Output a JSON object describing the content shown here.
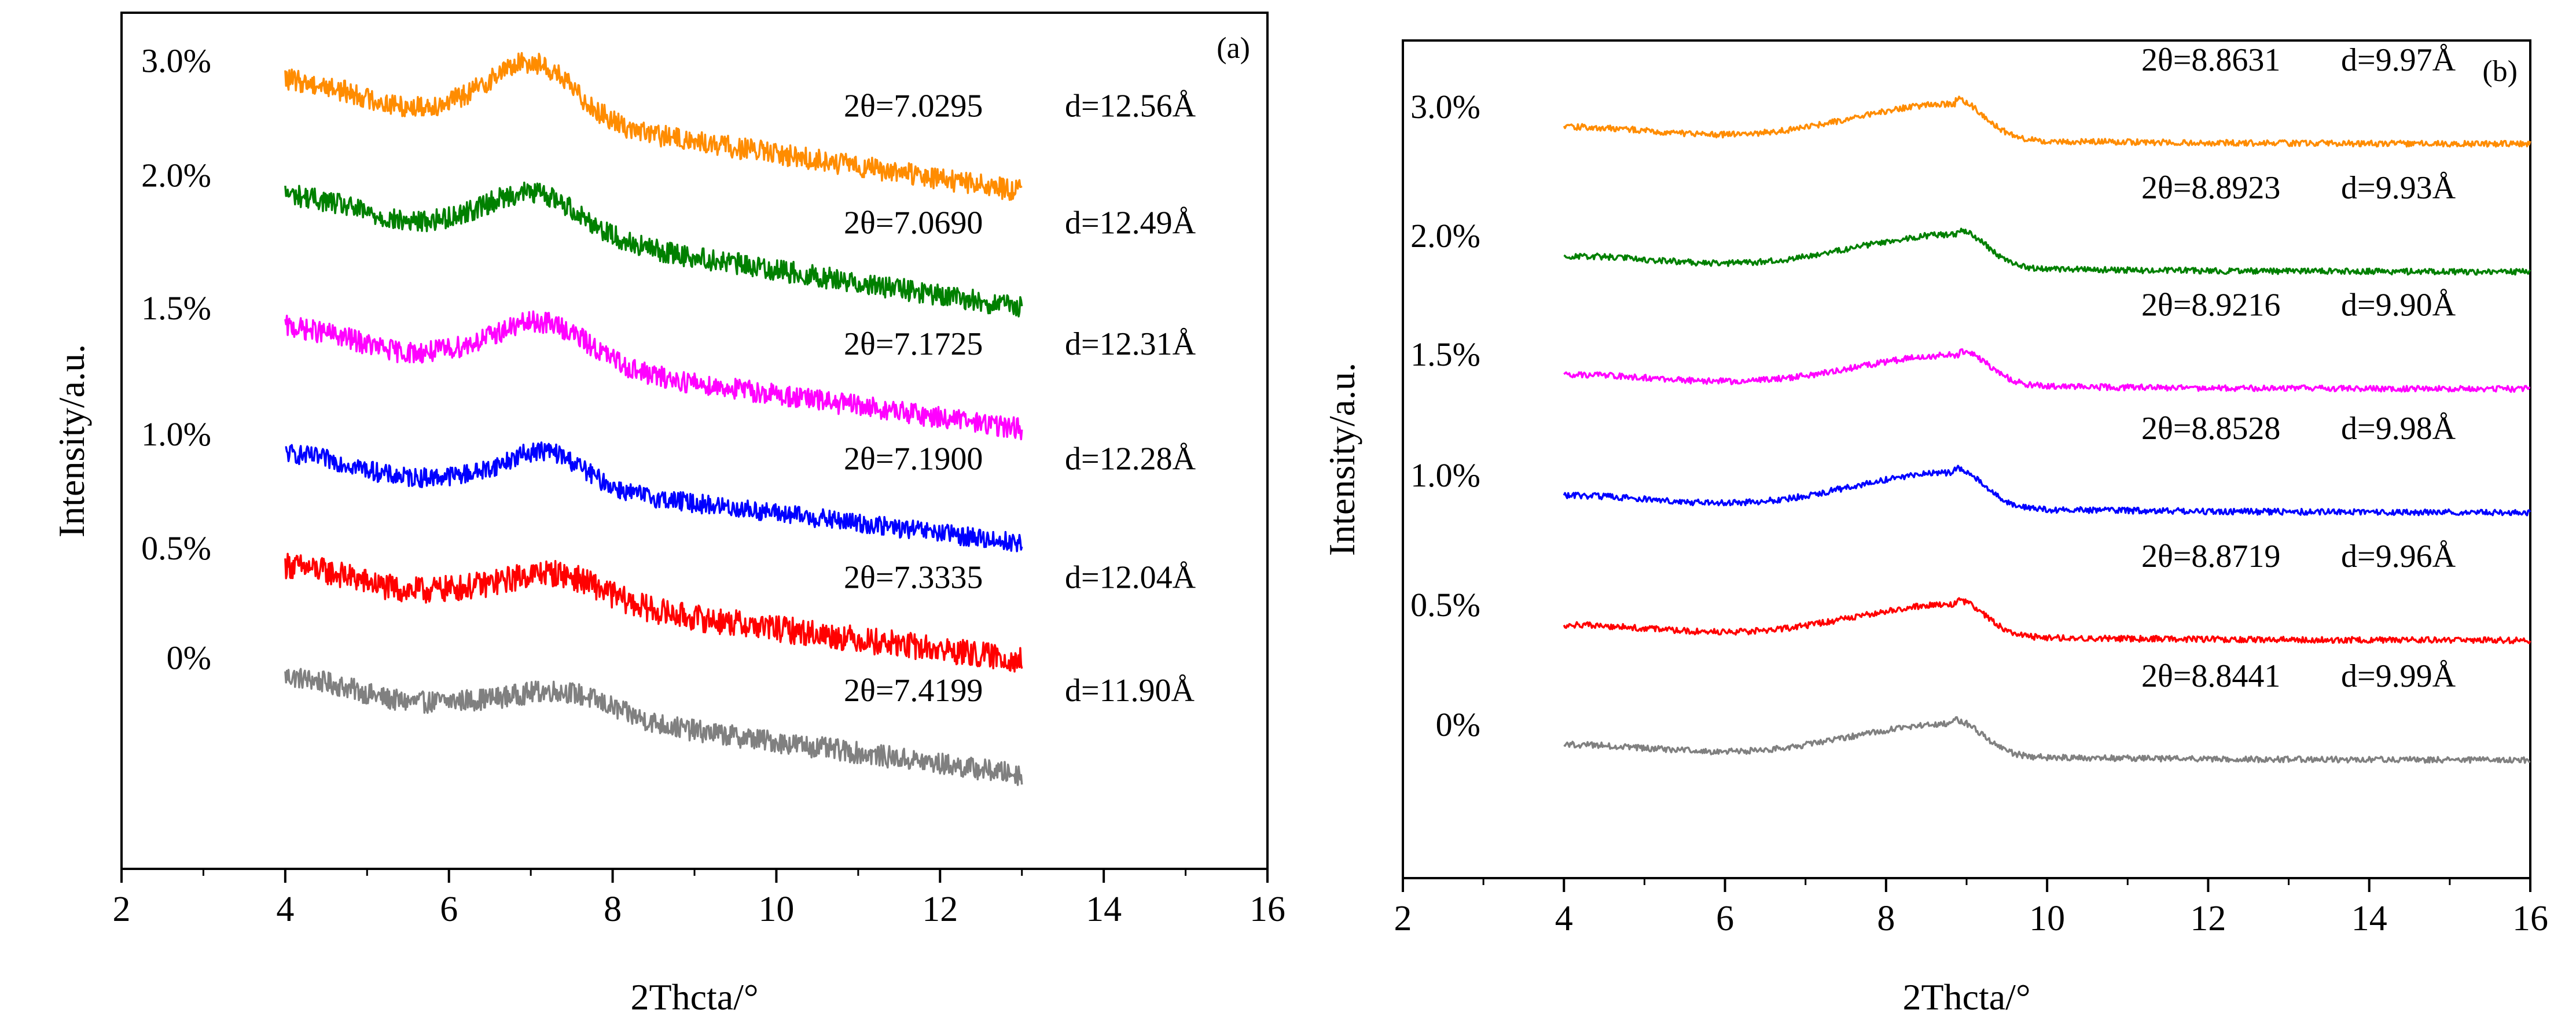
{
  "chart_data": [
    {
      "type": "line",
      "panel_label": "(a)",
      "xlabel": "2Thcta/°",
      "ylabel": "Intensity/a.u.",
      "xlim": [
        2,
        16
      ],
      "x_ticks": [
        "2",
        "4",
        "6",
        "8",
        "10",
        "12",
        "14",
        "16"
      ],
      "x_range_data": [
        4,
        13
      ],
      "series": [
        {
          "name": "0%",
          "label": "0%",
          "color": "#808080",
          "start": 1.0,
          "end": 0.18,
          "peak_x": 7.42,
          "peak_h": 0.18,
          "peak_w": 0.55,
          "noise": 0.09,
          "angle": "2θ=7.4199",
          "d": "d=11.90Å"
        },
        {
          "name": "0.5%",
          "label": "0.5%",
          "color": "#ff0000",
          "start": 1.92,
          "end": 1.13,
          "peak_x": 7.33,
          "peak_h": 0.22,
          "peak_w": 0.55,
          "noise": 0.11,
          "angle": "2θ=7.3335",
          "d": "d=12.04Å"
        },
        {
          "name": "1.0%",
          "label": "1.0%",
          "color": "#0000ff",
          "start": 2.85,
          "end": 2.1,
          "peak_x": 7.19,
          "peak_h": 0.28,
          "peak_w": 0.45,
          "noise": 0.08,
          "angle": "2θ=7.1900",
          "d": "d=12.28Å"
        },
        {
          "name": "1.5%",
          "label": "1.5%",
          "color": "#ff00ff",
          "start": 3.9,
          "end": 3.05,
          "peak_x": 7.17,
          "peak_h": 0.33,
          "peak_w": 0.55,
          "noise": 0.09,
          "angle": "2θ=7.1725",
          "d": "d=12.31Å"
        },
        {
          "name": "2.0%",
          "label": "2.0%",
          "color": "#008000",
          "start": 5.0,
          "end": 4.05,
          "peak_x": 7.07,
          "peak_h": 0.33,
          "peak_w": 0.55,
          "noise": 0.09,
          "angle": "2θ=7.0690",
          "d": "d=12.49Å"
        },
        {
          "name": "3.0%",
          "label": "3.0%",
          "color": "#ff8c00",
          "start": 5.95,
          "end": 5.02,
          "peak_x": 7.03,
          "peak_h": 0.45,
          "peak_w": 0.5,
          "noise": 0.09,
          "angle": "2θ=7.0295",
          "d": "d=12.56Å"
        }
      ]
    },
    {
      "type": "line",
      "panel_label": "(b)",
      "xlabel": "2Thcta/°",
      "ylabel": "Intensity/a.u.",
      "xlim": [
        2,
        16
      ],
      "x_ticks": [
        "2",
        "4",
        "6",
        "8",
        "10",
        "12",
        "14",
        "16"
      ],
      "x_range_data": [
        4,
        16
      ],
      "series": [
        {
          "name": "0%",
          "label": "0%",
          "color": "#808080",
          "base": 0.55,
          "amp": 0.72,
          "peak_x": 8.84,
          "angle": "2θ=8.8441",
          "d": "d=9.99Å"
        },
        {
          "name": "0.5%",
          "label": "0.5%",
          "color": "#ff0000",
          "base": 1.55,
          "amp": 0.72,
          "peak_x": 8.87,
          "angle": "2θ=8.8719",
          "d": "d=9.96Å"
        },
        {
          "name": "1.0%",
          "label": "1.0%",
          "color": "#0000ff",
          "base": 2.62,
          "amp": 0.8,
          "peak_x": 8.85,
          "angle": "2θ=8.8528",
          "d": "d=9.98Å"
        },
        {
          "name": "1.5%",
          "label": "1.5%",
          "color": "#ff00ff",
          "base": 3.65,
          "amp": 0.68,
          "peak_x": 8.92,
          "angle": "2θ=8.9216",
          "d": "d=9.90Å"
        },
        {
          "name": "2.0%",
          "label": "2.0%",
          "color": "#008000",
          "base": 4.63,
          "amp": 0.75,
          "peak_x": 8.89,
          "angle": "2θ=8.8923",
          "d": "d=9.93Å"
        },
        {
          "name": "3.0%",
          "label": "3.0%",
          "color": "#ff8c00",
          "base": 5.7,
          "amp": 0.8,
          "peak_x": 8.86,
          "angle": "2θ=8.8631",
          "d": "d=9.97Å"
        }
      ]
    }
  ]
}
